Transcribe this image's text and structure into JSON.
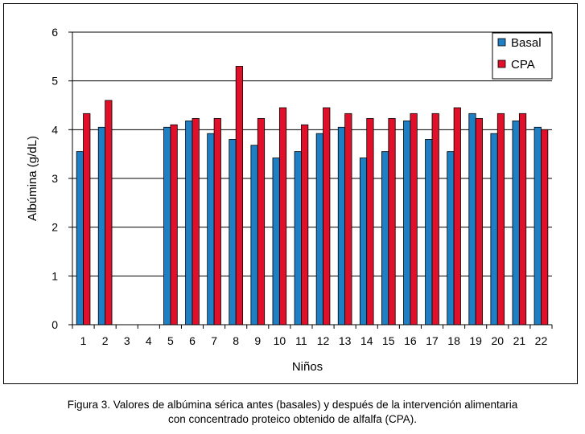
{
  "chart_data": {
    "type": "bar",
    "xlabel": "Niños",
    "ylabel": "Albúmina (g/dL)",
    "ylim": [
      0,
      6
    ],
    "yticks": [
      "0",
      "1",
      "2",
      "3",
      "4",
      "5",
      "6"
    ],
    "grid": true,
    "legend_position": "top-right",
    "categories": [
      "1",
      "2",
      "3",
      "4",
      "5",
      "6",
      "7",
      "8",
      "9",
      "10",
      "11",
      "12",
      "13",
      "14",
      "15",
      "16",
      "17",
      "18",
      "19",
      "20",
      "21",
      "22"
    ],
    "series": [
      {
        "name": "Basal",
        "color": "#1f7fc4",
        "values": [
          3.55,
          4.05,
          null,
          null,
          4.05,
          4.18,
          3.92,
          3.8,
          3.68,
          3.42,
          3.55,
          3.92,
          4.05,
          3.42,
          3.55,
          4.18,
          3.8,
          3.55,
          4.33,
          3.92,
          4.18,
          4.05
        ]
      },
      {
        "name": "CPA",
        "color": "#e0102a",
        "values": [
          4.33,
          4.6,
          null,
          null,
          4.1,
          4.23,
          4.23,
          5.3,
          4.23,
          4.45,
          4.1,
          4.45,
          4.33,
          4.23,
          4.23,
          4.33,
          4.33,
          4.45,
          4.23,
          4.33,
          4.33,
          4.0
        ]
      }
    ]
  },
  "caption": {
    "line1": "Figura 3. Valores de albúmina sérica antes (basales) y después de la intervención alimentaria",
    "line2": "con concentrado proteico obtenido de alfalfa (CPA)."
  }
}
